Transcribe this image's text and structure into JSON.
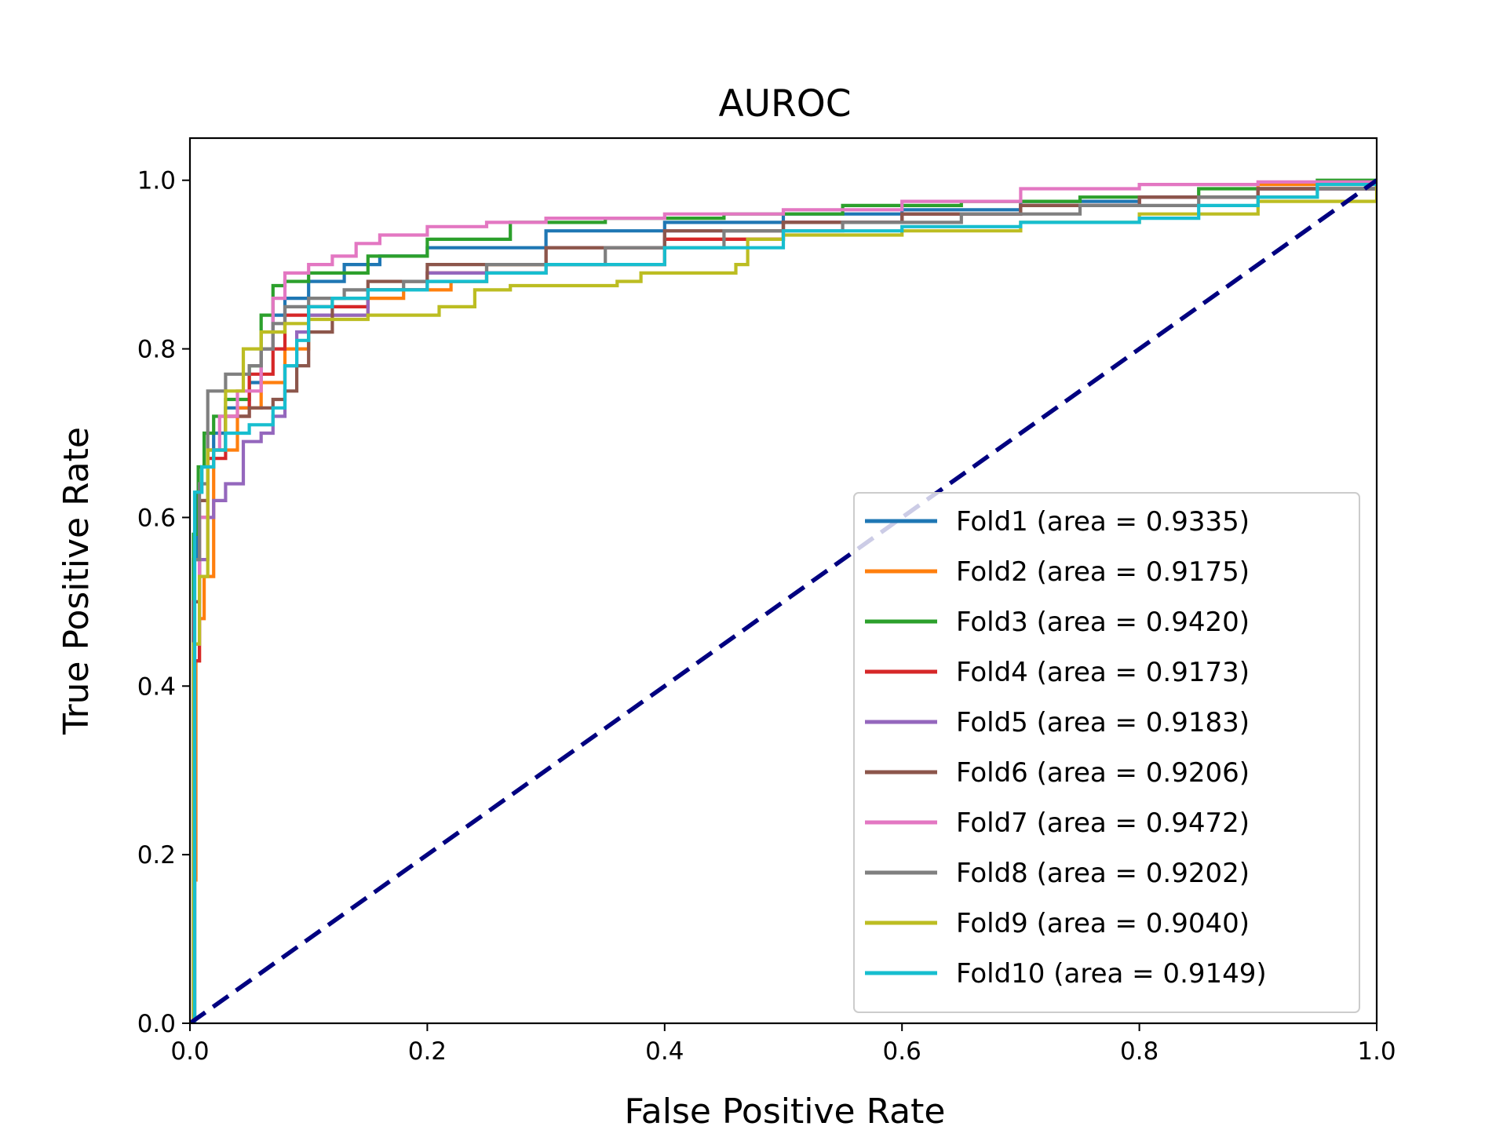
{
  "chart_data": {
    "type": "line",
    "title": "AUROC",
    "xlabel": "False Positive Rate",
    "ylabel": "True Positive Rate",
    "xlim": [
      0.0,
      1.0
    ],
    "ylim": [
      0.0,
      1.05
    ],
    "xticks": [
      "0.0",
      "0.2",
      "0.4",
      "0.6",
      "0.8",
      "1.0"
    ],
    "yticks": [
      "0.0",
      "0.2",
      "0.4",
      "0.6",
      "0.8",
      "1.0"
    ],
    "grid": false,
    "legend_position": "lower-right",
    "reference_line": {
      "x": [
        0.0,
        1.0
      ],
      "y": [
        0.0,
        1.0
      ],
      "color": "#000080",
      "style": "dashed"
    },
    "series": [
      {
        "name": "Fold1 (area = 0.9335)",
        "color": "#1f77b4",
        "x": [
          0,
          0.003,
          0.006,
          0.01,
          0.02,
          0.03,
          0.05,
          0.06,
          0.07,
          0.08,
          0.1,
          0.13,
          0.16,
          0.2,
          0.3,
          0.4,
          0.5,
          0.6,
          0.7,
          0.8,
          0.9,
          1.0
        ],
        "y": [
          0,
          0.55,
          0.63,
          0.66,
          0.7,
          0.73,
          0.76,
          0.8,
          0.84,
          0.86,
          0.88,
          0.9,
          0.91,
          0.92,
          0.94,
          0.95,
          0.96,
          0.965,
          0.975,
          0.98,
          0.99,
          1.0
        ]
      },
      {
        "name": "Fold2 (area = 0.9175)",
        "color": "#ff7f0e",
        "x": [
          0,
          0.003,
          0.005,
          0.008,
          0.012,
          0.02,
          0.04,
          0.06,
          0.08,
          0.1,
          0.15,
          0.18,
          0.22,
          0.25,
          0.3,
          0.4,
          0.5,
          0.6,
          0.7,
          0.8,
          0.9,
          1.0
        ],
        "y": [
          0,
          0.17,
          0.43,
          0.48,
          0.53,
          0.68,
          0.73,
          0.76,
          0.8,
          0.84,
          0.86,
          0.87,
          0.88,
          0.9,
          0.92,
          0.93,
          0.95,
          0.96,
          0.97,
          0.98,
          0.995,
          1.0
        ]
      },
      {
        "name": "Fold3 (area = 0.9420)",
        "color": "#2ca02c",
        "x": [
          0,
          0.003,
          0.007,
          0.012,
          0.02,
          0.03,
          0.05,
          0.06,
          0.07,
          0.08,
          0.1,
          0.15,
          0.2,
          0.27,
          0.35,
          0.45,
          0.55,
          0.65,
          0.75,
          0.85,
          0.95,
          1.0
        ],
        "y": [
          0,
          0.58,
          0.66,
          0.7,
          0.72,
          0.74,
          0.78,
          0.84,
          0.875,
          0.88,
          0.89,
          0.91,
          0.93,
          0.95,
          0.955,
          0.96,
          0.97,
          0.975,
          0.98,
          0.99,
          1.0,
          1.0
        ]
      },
      {
        "name": "Fold4 (area = 0.9173)",
        "color": "#d62728",
        "x": [
          0,
          0.004,
          0.008,
          0.015,
          0.03,
          0.05,
          0.07,
          0.08,
          0.1,
          0.15,
          0.2,
          0.3,
          0.4,
          0.4,
          0.5,
          0.6,
          0.7,
          0.8,
          0.9,
          1.0
        ],
        "y": [
          0,
          0.43,
          0.6,
          0.67,
          0.72,
          0.77,
          0.8,
          0.84,
          0.85,
          0.87,
          0.89,
          0.9,
          0.91,
          0.93,
          0.95,
          0.96,
          0.97,
          0.98,
          0.99,
          0.99
        ]
      },
      {
        "name": "Fold5 (area = 0.9183)",
        "color": "#9467bd",
        "x": [
          0,
          0.004,
          0.008,
          0.015,
          0.02,
          0.03,
          0.045,
          0.06,
          0.07,
          0.08,
          0.09,
          0.1,
          0.15,
          0.2,
          0.3,
          0.4,
          0.5,
          0.6,
          0.7,
          0.8,
          0.9,
          1.0
        ],
        "y": [
          0,
          0.45,
          0.55,
          0.6,
          0.62,
          0.64,
          0.69,
          0.7,
          0.72,
          0.78,
          0.82,
          0.84,
          0.87,
          0.89,
          0.92,
          0.94,
          0.95,
          0.96,
          0.97,
          0.98,
          0.99,
          1.0
        ]
      },
      {
        "name": "Fold6 (area = 0.9206)",
        "color": "#8c564b",
        "x": [
          0,
          0.003,
          0.008,
          0.015,
          0.03,
          0.05,
          0.07,
          0.08,
          0.09,
          0.1,
          0.12,
          0.15,
          0.2,
          0.3,
          0.4,
          0.5,
          0.6,
          0.7,
          0.8,
          0.9,
          1.0
        ],
        "y": [
          0,
          0.5,
          0.62,
          0.68,
          0.72,
          0.73,
          0.74,
          0.75,
          0.78,
          0.82,
          0.86,
          0.88,
          0.9,
          0.92,
          0.94,
          0.95,
          0.96,
          0.97,
          0.98,
          0.99,
          1.0
        ]
      },
      {
        "name": "Fold7 (area = 0.9472)",
        "color": "#e377c2",
        "x": [
          0,
          0.003,
          0.008,
          0.015,
          0.025,
          0.04,
          0.06,
          0.07,
          0.08,
          0.1,
          0.12,
          0.14,
          0.16,
          0.2,
          0.25,
          0.3,
          0.4,
          0.5,
          0.6,
          0.7,
          0.8,
          0.9,
          1.0
        ],
        "y": [
          0,
          0.45,
          0.6,
          0.68,
          0.72,
          0.75,
          0.8,
          0.86,
          0.89,
          0.9,
          0.91,
          0.925,
          0.935,
          0.945,
          0.95,
          0.955,
          0.96,
          0.965,
          0.975,
          0.99,
          0.995,
          0.998,
          1.0
        ]
      },
      {
        "name": "Fold8 (area = 0.9202)",
        "color": "#7f7f7f",
        "x": [
          0,
          0.004,
          0.008,
          0.015,
          0.03,
          0.05,
          0.06,
          0.07,
          0.08,
          0.1,
          0.13,
          0.18,
          0.25,
          0.35,
          0.45,
          0.55,
          0.65,
          0.75,
          0.85,
          0.95,
          1.0
        ],
        "y": [
          0,
          0.55,
          0.64,
          0.75,
          0.77,
          0.78,
          0.8,
          0.83,
          0.85,
          0.86,
          0.87,
          0.88,
          0.9,
          0.92,
          0.94,
          0.95,
          0.96,
          0.97,
          0.98,
          0.99,
          1.0
        ]
      },
      {
        "name": "Fold9 (area = 0.9040)",
        "color": "#bcbd22",
        "x": [
          0,
          0.003,
          0.008,
          0.015,
          0.03,
          0.045,
          0.06,
          0.08,
          0.1,
          0.15,
          0.21,
          0.24,
          0.27,
          0.36,
          0.38,
          0.46,
          0.47,
          0.5,
          0.6,
          0.7,
          0.8,
          0.9,
          1.0
        ],
        "y": [
          0,
          0.45,
          0.53,
          0.68,
          0.75,
          0.8,
          0.82,
          0.83,
          0.835,
          0.84,
          0.85,
          0.87,
          0.875,
          0.88,
          0.89,
          0.9,
          0.93,
          0.935,
          0.94,
          0.95,
          0.96,
          0.975,
          1.0
        ]
      },
      {
        "name": "Fold10 (area = 0.9149)",
        "color": "#17becf",
        "x": [
          0,
          0.004,
          0.01,
          0.02,
          0.03,
          0.05,
          0.07,
          0.08,
          0.09,
          0.1,
          0.12,
          0.15,
          0.2,
          0.25,
          0.3,
          0.4,
          0.5,
          0.6,
          0.7,
          0.8,
          0.85,
          0.9,
          0.95,
          1.0
        ],
        "y": [
          0,
          0.63,
          0.66,
          0.68,
          0.7,
          0.71,
          0.73,
          0.78,
          0.81,
          0.85,
          0.86,
          0.87,
          0.88,
          0.89,
          0.9,
          0.92,
          0.94,
          0.945,
          0.95,
          0.955,
          0.97,
          0.98,
          0.995,
          1.0
        ]
      }
    ]
  }
}
